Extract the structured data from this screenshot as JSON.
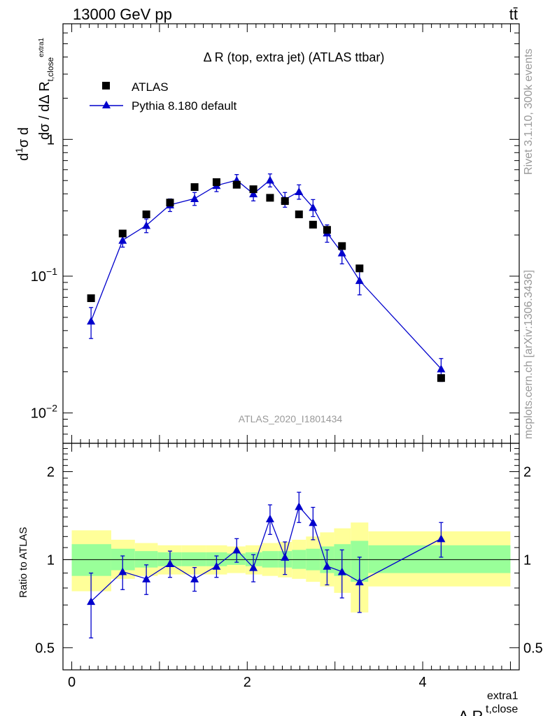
{
  "header": {
    "energy": "13000 GeV pp",
    "process": "tt̄"
  },
  "side_labels": {
    "rivet": "Rivet 3.1.10,  300k events",
    "source": "mcplots.cern.ch [arXiv:1306.3436]"
  },
  "chart_data": {
    "type": "scatter",
    "title": "Δ R (top, extra jet) (ATLAS ttbar)",
    "analysis_id": "ATLAS_2020_I1801434",
    "xlabel": "Δ R",
    "xlabel_sub": "t,close",
    "xlabel_sup": "extra1",
    "ylabel_main": "dσ/(dΔR) · 1/σ",
    "ylabel_ratio": "Ratio to ATLAS",
    "xlim": [
      -0.1,
      5.1
    ],
    "ylim_main": [
      0.006,
      7.0
    ],
    "ylim_ratio": [
      0.42,
      2.5
    ],
    "yscale": "log",
    "x_ticks": [
      "0",
      "2",
      "4"
    ],
    "y_ticks_main": [
      "10^-2",
      "10^-1",
      "1"
    ],
    "y_ticks_ratio": [
      "0.5",
      "1",
      "2"
    ],
    "legend_position": "top-left",
    "grid": false,
    "colors": {
      "mc": "#0000cc",
      "data": "#000000",
      "band_inner": "#99ff99",
      "band_outer": "#ffff99"
    },
    "series": [
      {
        "name": "ATLAS",
        "marker": "square",
        "x": [
          0.22,
          0.58,
          0.85,
          1.12,
          1.4,
          1.65,
          1.88,
          2.07,
          2.26,
          2.43,
          2.59,
          2.75,
          2.91,
          3.08,
          3.28,
          4.21
        ],
        "y": [
          0.069,
          0.205,
          0.283,
          0.345,
          0.448,
          0.487,
          0.466,
          0.432,
          0.374,
          0.354,
          0.283,
          0.238,
          0.218,
          0.166,
          0.114,
          0.018
        ]
      },
      {
        "name": "Pythia 8.180 default",
        "marker": "triangle",
        "x": [
          0.22,
          0.58,
          0.85,
          1.12,
          1.4,
          1.65,
          1.88,
          2.07,
          2.26,
          2.43,
          2.59,
          2.75,
          2.91,
          3.08,
          3.28,
          4.21
        ],
        "y": [
          0.047,
          0.183,
          0.235,
          0.332,
          0.369,
          0.46,
          0.503,
          0.4,
          0.504,
          0.364,
          0.415,
          0.318,
          0.207,
          0.148,
          0.093,
          0.021
        ],
        "y_err": [
          0.012,
          0.02,
          0.027,
          0.035,
          0.04,
          0.045,
          0.05,
          0.045,
          0.055,
          0.045,
          0.05,
          0.045,
          0.03,
          0.025,
          0.02,
          0.004
        ],
        "ratio": [
          0.72,
          0.91,
          0.86,
          0.97,
          0.86,
          0.95,
          1.08,
          0.94,
          1.38,
          1.02,
          1.52,
          1.34,
          0.95,
          0.91,
          0.84,
          1.18
        ],
        "ratio_err": [
          0.18,
          0.12,
          0.1,
          0.1,
          0.08,
          0.08,
          0.1,
          0.1,
          0.16,
          0.13,
          0.18,
          0.17,
          0.13,
          0.17,
          0.18,
          0.16
        ]
      }
    ],
    "uncertainty_bands": {
      "edges": [
        0.0,
        0.45,
        0.72,
        0.98,
        1.25,
        1.53,
        1.77,
        1.98,
        2.17,
        2.35,
        2.51,
        2.67,
        2.83,
        2.99,
        3.18,
        3.38,
        5.0
      ],
      "inner_low": [
        0.88,
        0.92,
        0.94,
        0.95,
        0.95,
        0.95,
        0.96,
        0.95,
        0.94,
        0.94,
        0.93,
        0.92,
        0.9,
        0.88,
        0.84,
        0.9
      ],
      "inner_high": [
        1.13,
        1.09,
        1.07,
        1.06,
        1.06,
        1.06,
        1.05,
        1.06,
        1.07,
        1.07,
        1.08,
        1.09,
        1.11,
        1.13,
        1.16,
        1.12
      ],
      "outer_low": [
        0.78,
        0.86,
        0.88,
        0.89,
        0.89,
        0.89,
        0.9,
        0.89,
        0.88,
        0.87,
        0.86,
        0.84,
        0.81,
        0.77,
        0.66,
        0.81
      ],
      "outer_high": [
        1.26,
        1.17,
        1.14,
        1.12,
        1.12,
        1.12,
        1.11,
        1.12,
        1.14,
        1.15,
        1.17,
        1.2,
        1.24,
        1.28,
        1.34,
        1.25
      ]
    }
  }
}
